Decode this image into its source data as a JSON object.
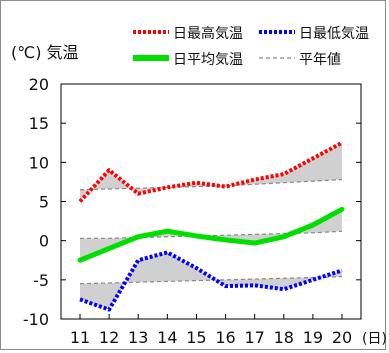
{
  "chart_data": {
    "type": "line",
    "ylabel": "(℃) 気温",
    "xunit": "(日)",
    "x": [
      11,
      12,
      13,
      14,
      15,
      16,
      17,
      18,
      19,
      20
    ],
    "ylim": [
      -10,
      20
    ],
    "yticks": [
      -10,
      -5,
      0,
      5,
      10,
      15,
      20
    ],
    "grid": false,
    "legend_position": "top",
    "series": [
      {
        "name": "日最高気温",
        "color": "#ff0000",
        "style": "dotted",
        "x": [
          11,
          12,
          13,
          14,
          15,
          16,
          17,
          18,
          19,
          20
        ],
        "values": [
          5.0,
          9.0,
          6.0,
          6.8,
          7.4,
          6.9,
          7.8,
          8.5,
          10.5,
          12.5
        ]
      },
      {
        "name": "日最低気温",
        "color": "#0000ff",
        "style": "dotted",
        "x": [
          11,
          12,
          13,
          14,
          15,
          16,
          17,
          18,
          19,
          20
        ],
        "values": [
          -7.5,
          -8.8,
          -2.5,
          -1.5,
          -3.5,
          -5.8,
          -5.7,
          -6.2,
          -5.0,
          -3.8
        ]
      },
      {
        "name": "日平均気温",
        "color": "#00e000",
        "style": "thick",
        "x": [
          11,
          12,
          13,
          14,
          15,
          16,
          17,
          18,
          19,
          20
        ],
        "values": [
          -2.5,
          -1.0,
          0.5,
          1.2,
          0.6,
          0.1,
          -0.3,
          0.5,
          2.0,
          4.0
        ]
      },
      {
        "name": "平年値",
        "color": "#888888",
        "style": "dashed",
        "role": "normals",
        "normals": [
          {
            "x": [
              11,
              12,
              13,
              14,
              15,
              16,
              17,
              18,
              19,
              20
            ],
            "values": [
              6.5,
              6.6,
              6.7,
              6.8,
              6.9,
              7.0,
              7.2,
              7.4,
              7.6,
              7.8
            ]
          },
          {
            "x": [
              11,
              12,
              13,
              14,
              15,
              16,
              17,
              18,
              19,
              20
            ],
            "values": [
              0.3,
              0.3,
              0.4,
              0.5,
              0.6,
              0.7,
              0.8,
              0.9,
              1.0,
              1.2
            ]
          },
          {
            "x": [
              11,
              12,
              13,
              14,
              15,
              16,
              17,
              18,
              19,
              20
            ],
            "values": [
              -5.5,
              -5.4,
              -5.3,
              -5.2,
              -5.1,
              -5.0,
              -4.9,
              -4.8,
              -4.7,
              -4.6
            ]
          }
        ]
      }
    ]
  }
}
